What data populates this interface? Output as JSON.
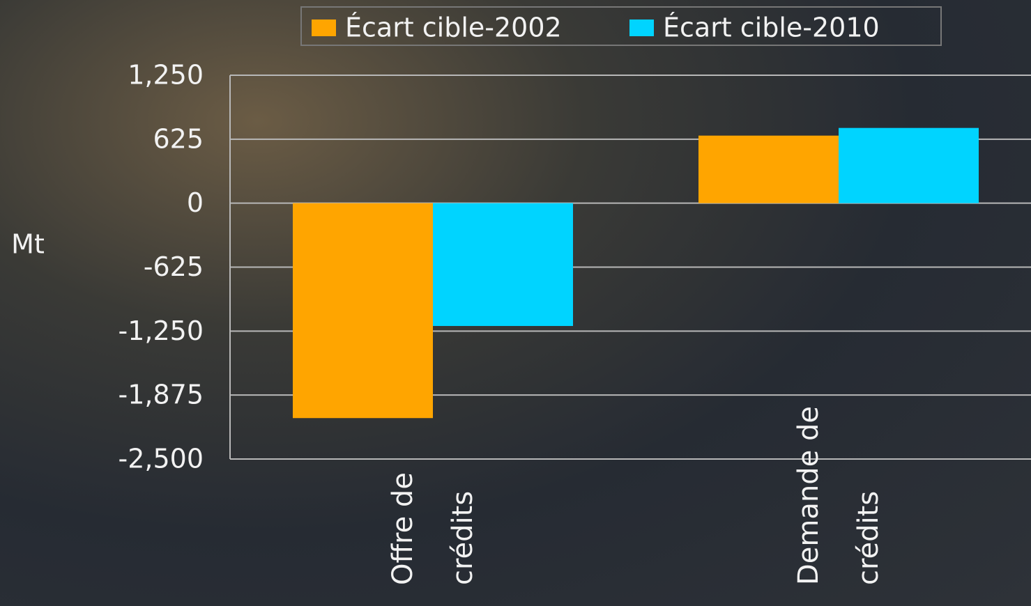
{
  "chart_data": {
    "type": "bar",
    "y_label": "Mt",
    "categories": [
      "Offre de crédits",
      "Demande de crédits"
    ],
    "series": [
      {
        "name": "Écart cible-2002",
        "color": "#ffa500",
        "values": [
          -2100,
          660
        ]
      },
      {
        "name": "Écart cible-2010",
        "color": "#00d4ff",
        "values": [
          -1200,
          735
        ]
      }
    ],
    "ylim": [
      -2500,
      1250
    ],
    "yticks": [
      {
        "value": -2500,
        "label": "-2,500"
      },
      {
        "value": -1875,
        "label": "-1,875"
      },
      {
        "value": -1250,
        "label": "-1,250"
      },
      -625,
      0,
      625,
      {
        "value": 1250,
        "label": "1,250"
      }
    ],
    "grid": true,
    "legend": "top"
  }
}
